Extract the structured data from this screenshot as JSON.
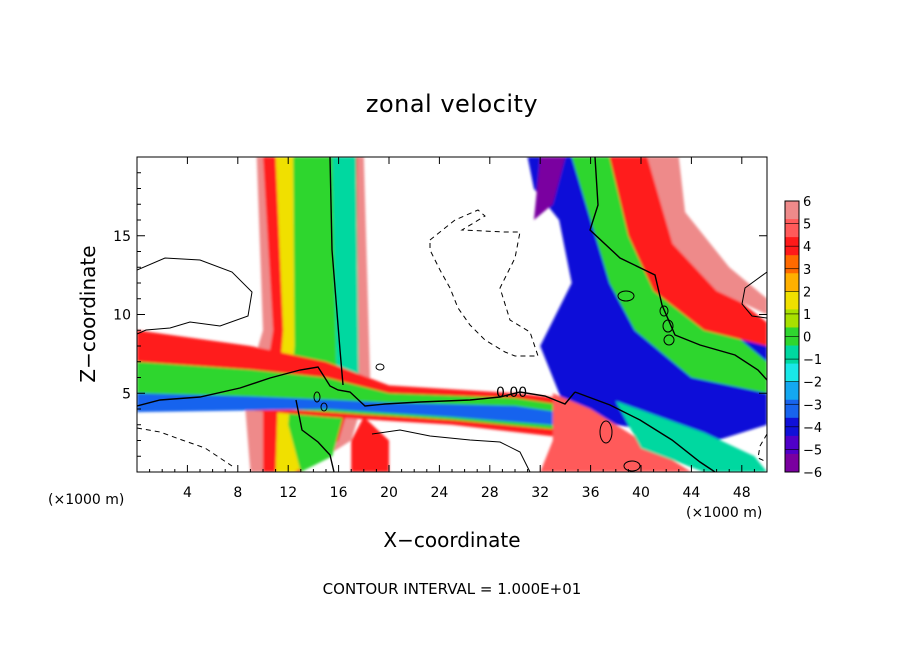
{
  "chart_data": {
    "type": "heatmap",
    "title": "zonal velocity",
    "xlabel": "X−coordinate",
    "ylabel": "Z−coordinate",
    "x_unit_left": "(×1000 m)",
    "x_unit_right": "(×1000 m)",
    "footer": "CONTOUR INTERVAL = 1.000E+01",
    "contour_label": "0.00",
    "xlim": [
      0,
      50
    ],
    "ylim": [
      0,
      20
    ],
    "xticks": [
      4,
      8,
      12,
      16,
      20,
      24,
      28,
      32,
      36,
      40,
      44,
      48
    ],
    "xtick_labels": [
      "4",
      "8",
      "12",
      "16",
      "20",
      "24",
      "28",
      "32",
      "36",
      "40",
      "44",
      "48"
    ],
    "yticks": [
      5,
      10,
      15
    ],
    "ytick_labels": [
      "5",
      "10",
      "15"
    ],
    "colorbar": {
      "min": -6,
      "max": 6,
      "tick_labels": [
        "6",
        "5",
        "4",
        "3",
        "2",
        "1",
        "0",
        "−1",
        "−2",
        "−3",
        "−4",
        "−5",
        "−6"
      ],
      "colors": [
        "#ee8a8a",
        "#ff5a5a",
        "#ff1a1a",
        "#ff6a00",
        "#ffb000",
        "#f0e000",
        "#a8e000",
        "#2fd62f",
        "#00d8a0",
        "#19e8e8",
        "#14a8f0",
        "#1864ee",
        "#1010d8",
        "#5000c8",
        "#7a00a0"
      ]
    }
  }
}
